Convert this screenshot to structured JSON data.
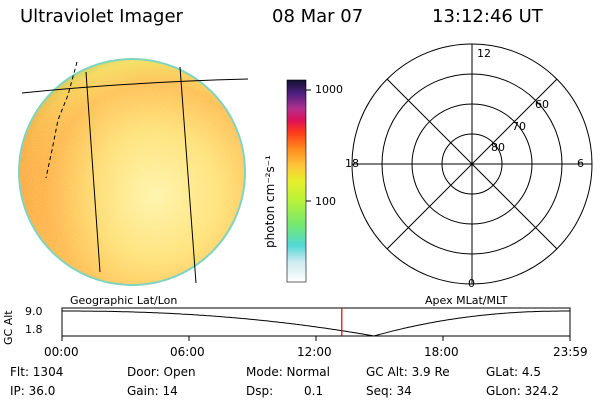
{
  "header": {
    "instrument": "Ultraviolet Imager",
    "date": "08 Mar 07",
    "time": "13:12:46 UT"
  },
  "colorbar": {
    "unit_label": "photon cm⁻²s⁻¹",
    "ticks": [
      "1000",
      "100"
    ]
  },
  "polar": {
    "mlt_labels": [
      "12",
      "18",
      "6",
      "0"
    ],
    "lat_labels": [
      "60",
      "70",
      "80"
    ]
  },
  "panels": {
    "left_label": "Geographic Lat/Lon",
    "right_label": "Apex MLat/MLT"
  },
  "altplot": {
    "axis_label": "GC Alt",
    "y_ticks": [
      "9.0",
      "1.8"
    ],
    "x_ticks": [
      "00:00",
      "06:00",
      "12:00",
      "18:00",
      "23:59"
    ],
    "current_time_hours": 13.21,
    "marker_color": "#e00000"
  },
  "info": {
    "flt": "Flt: 1304",
    "ip": "IP: 36.0",
    "door": "Door: Open",
    "gain": "Gain: 14",
    "mode": "Mode: Normal",
    "dsp_label": "Dsp:",
    "dsp_value": "0.1",
    "gcalt": "GC Alt: 3.9 Re",
    "seq": "Seq: 34",
    "glat": "GLat:  4.5",
    "glon": "GLon: 324.2"
  },
  "colors": {
    "image_fill_core": "#ffe27a",
    "image_fill_mid": "#ffb84a",
    "image_fill_edge": "#c9ee52",
    "image_rim": "#6fd6c8"
  }
}
